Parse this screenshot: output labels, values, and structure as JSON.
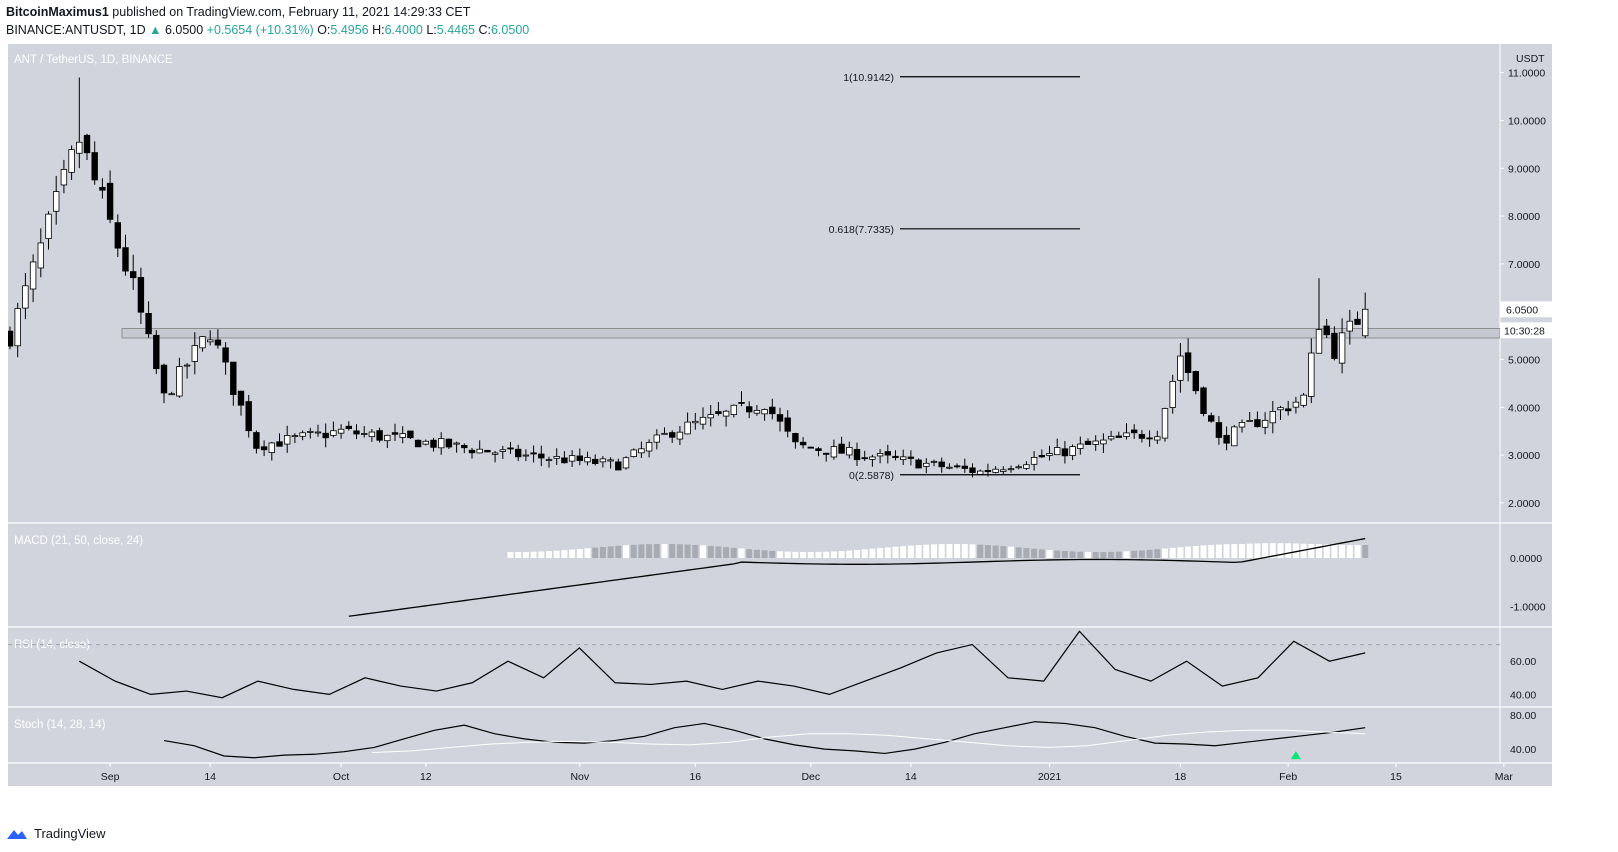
{
  "header": {
    "author": "BitcoinMaximus1",
    "published_text": " published on TradingView.com, February 11, 2021 14:29:33 CET",
    "symbol": "BINANCE:ANTUSDT, 1D",
    "last": "6.0500",
    "change": "+0.5654 (+10.31%)",
    "o_label": "O:",
    "o": "5.4956",
    "h_label": "H:",
    "h": "6.4000",
    "l_label": "L:",
    "l": "5.4465",
    "c_label": "C:",
    "c": "6.0500"
  },
  "main_panel": {
    "title": "ANT / TetherUS, 1D, BINANCE",
    "currency": "USDT",
    "price_tag": "6.0500",
    "countdown_tag": "10:30:28",
    "y_ticks": [
      "11.0000",
      "10.0000",
      "9.0000",
      "8.0000",
      "7.0000",
      "6.0000",
      "5.0000",
      "4.0000",
      "3.0000",
      "2.0000"
    ],
    "fib_labels": [
      "1(10.9142)",
      "0.618(7.7335)",
      "0(2.5878)"
    ]
  },
  "macd_panel": {
    "title": "MACD (21, 50, close, 24)",
    "y_ticks": [
      "0.0000",
      "-1.0000"
    ]
  },
  "rsi_panel": {
    "title": "RSI (14, close)",
    "y_ticks": [
      "60.00",
      "40.00"
    ]
  },
  "stoch_panel": {
    "title": "Stoch (14, 28, 14)",
    "y_ticks": [
      "80.00",
      "40.00"
    ]
  },
  "x_axis": {
    "labels": [
      "Sep",
      "14",
      "Oct",
      "12",
      "Nov",
      "16",
      "Dec",
      "14",
      "2021",
      "18",
      "Feb",
      "15",
      "Mar"
    ]
  },
  "footer": {
    "brand": "TradingView"
  },
  "colors": {
    "panel_bg": "#d1d4dc",
    "axis_text": "#131722",
    "bull": "#ffffff",
    "bear": "#000000",
    "up_text": "#26a69a",
    "signal": "#00e676"
  },
  "chart_data": [
    {
      "type": "candlestick",
      "title": "ANT / TetherUS, 1D, BINANCE",
      "ylabel": "USDT",
      "ylim": [
        1.6,
        11.6
      ],
      "x_start": "2020-08-19",
      "x_end": "2021-02-11",
      "key_points": [
        {
          "date": "2020-08-19",
          "close": 5.5
        },
        {
          "date": "2020-08-28",
          "close": 9.6
        },
        {
          "date": "2020-09-04",
          "close": 6.5
        },
        {
          "date": "2020-09-08",
          "close": 4.2
        },
        {
          "date": "2020-09-14",
          "close": 5.6
        },
        {
          "date": "2020-09-20",
          "close": 3.2
        },
        {
          "date": "2020-10-01",
          "close": 3.5
        },
        {
          "date": "2020-10-24",
          "close": 3.0
        },
        {
          "date": "2020-11-06",
          "close": 2.8
        },
        {
          "date": "2020-11-13",
          "close": 3.5
        },
        {
          "date": "2020-11-25",
          "close": 4.1
        },
        {
          "date": "2020-11-29",
          "close": 3.2
        },
        {
          "date": "2020-12-23",
          "close": 2.65
        },
        {
          "date": "2021-01-06",
          "close": 3.2
        },
        {
          "date": "2021-01-15",
          "close": 3.5
        },
        {
          "date": "2021-01-18",
          "close": 5.1
        },
        {
          "date": "2021-01-23",
          "close": 3.3
        },
        {
          "date": "2021-02-03",
          "close": 4.2
        },
        {
          "date": "2021-02-05",
          "close": 5.8
        },
        {
          "date": "2021-02-07",
          "close": 5.2
        },
        {
          "date": "2021-02-11",
          "close": 6.05
        }
      ],
      "last": {
        "open": 5.4956,
        "high": 6.4,
        "low": 5.4465,
        "close": 6.05
      },
      "support_zone": [
        5.45,
        5.65
      ],
      "fibonacci": [
        {
          "level": "1",
          "price": 10.9142
        },
        {
          "level": "0.618",
          "price": 7.7335
        },
        {
          "level": "0",
          "price": 2.5878
        }
      ]
    },
    {
      "type": "line",
      "name": "MACD (21, 50, close, 24)",
      "ylim": [
        -1.4,
        0.7
      ],
      "start": -1.2,
      "end": 0.55
    },
    {
      "type": "line",
      "name": "RSI (14, close)",
      "ylim": [
        33,
        80
      ],
      "series_hint": [
        60,
        48,
        40,
        42,
        38,
        48,
        43,
        40,
        50,
        45,
        42,
        47,
        60,
        50,
        68,
        47,
        46,
        48,
        43,
        48,
        45,
        40,
        48,
        56,
        65,
        70,
        50,
        48,
        78,
        55,
        48,
        60,
        45,
        50,
        72,
        60,
        65
      ]
    },
    {
      "type": "line",
      "name": "Stoch (14, 28, 14)",
      "ylim": [
        25,
        88
      ],
      "series_hint": [
        50,
        44,
        32,
        30,
        33,
        34,
        37,
        42,
        52,
        62,
        68,
        58,
        52,
        48,
        47,
        50,
        55,
        65,
        70,
        62,
        52,
        45,
        40,
        38,
        35,
        40,
        48,
        58,
        65,
        72,
        70,
        65,
        55,
        47,
        46,
        44,
        48,
        52,
        56,
        60,
        65
      ],
      "signal_hint": [
        36,
        38,
        42,
        46,
        48,
        49,
        48,
        46,
        45,
        48,
        54,
        58,
        58,
        56,
        52,
        48,
        44,
        42,
        44,
        50,
        56,
        60,
        62,
        62,
        60,
        58
      ]
    }
  ]
}
